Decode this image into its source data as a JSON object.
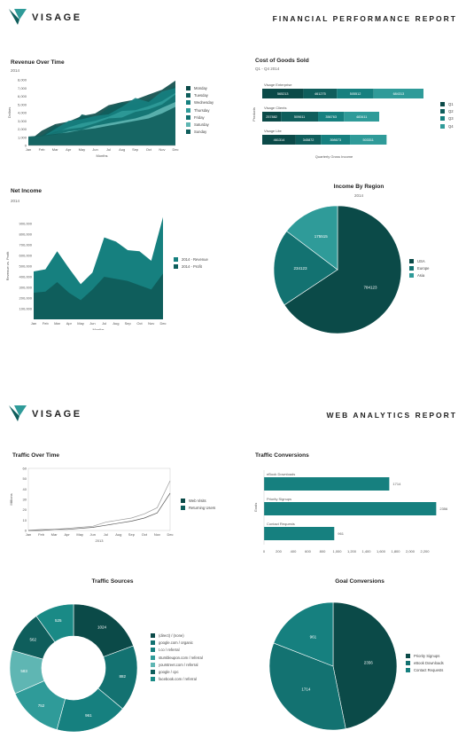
{
  "brand": {
    "name": "VISAGE"
  },
  "sections": [
    {
      "report_title": "FINANCIAL PERFORMANCE REPORT"
    },
    {
      "report_title": "WEB ANALYTICS REPORT"
    }
  ],
  "colors": {
    "teal_darkest": "#0b4a48",
    "teal_dark": "#0f5e5c",
    "teal_mid": "#137271",
    "teal": "#16807f",
    "teal_light": "#2f9b99",
    "teal_lighter": "#5fb6b3",
    "gray_line": "#9a9a9a"
  },
  "chart_data": [
    {
      "id": "revenue-over-time",
      "type": "area",
      "title": "Revenue Over Time",
      "subtitle": "2014",
      "xlabel": "Months",
      "ylabel": "Dollars",
      "categories": [
        "Jan",
        "Feb",
        "Mar",
        "Apr",
        "May",
        "Jun",
        "Jul",
        "Aug",
        "Sep",
        "Oct",
        "Nov",
        "Dec"
      ],
      "yticks": [
        "0",
        "1,000",
        "2,000",
        "3,000",
        "4,000",
        "5,000",
        "6,000",
        "7,000",
        "8,000"
      ],
      "ylim": [
        0,
        8000
      ],
      "series": [
        {
          "name": "Monday",
          "values": [
            500,
            1800,
            2600,
            2900,
            3600,
            3900,
            4900,
            5300,
            5600,
            6200,
            6800,
            7900
          ]
        },
        {
          "name": "Tuesday",
          "values": [
            600,
            1200,
            2400,
            2000,
            3800,
            3400,
            4600,
            5200,
            5000,
            5600,
            6200,
            7300
          ]
        },
        {
          "name": "Wednesday",
          "values": [
            700,
            1000,
            2000,
            3000,
            3200,
            3600,
            3800,
            4700,
            5800,
            5300,
            6600,
            7000
          ]
        },
        {
          "name": "Thursday",
          "values": [
            800,
            1100,
            1500,
            2200,
            2700,
            3000,
            3500,
            4200,
            4300,
            4800,
            5400,
            6400
          ]
        },
        {
          "name": "Friday",
          "values": [
            900,
            1000,
            1700,
            2000,
            2200,
            2700,
            3300,
            3400,
            4100,
            4400,
            5000,
            6200
          ]
        },
        {
          "name": "Saturday",
          "values": [
            1000,
            1100,
            1300,
            1700,
            1900,
            2400,
            2700,
            3000,
            3300,
            3800,
            4600,
            5300
          ]
        },
        {
          "name": "Sunday",
          "values": [
            1100,
            1200,
            1400,
            1600,
            1900,
            2100,
            2400,
            2700,
            3000,
            3300,
            3900,
            4700
          ]
        }
      ],
      "legend": "right"
    },
    {
      "id": "cost-of-goods-sold",
      "type": "bar",
      "orientation": "horizontal-stacked",
      "title": "Cost of Goods Sold",
      "subtitle": "Q1 - Q4 2014",
      "xlabel": "Quarterly Gross Income",
      "ylabel": "Products",
      "categories": [
        "Visage Enterprise",
        "Visage Clients",
        "Visage Lite"
      ],
      "series": [
        {
          "name": "Q1",
          "values": [
            565213,
            257882,
            461314
          ]
        },
        {
          "name": "Q2",
          "values": [
            461275,
            509611,
            345872
          ]
        },
        {
          "name": "Q3",
          "values": [
            505512,
            356763,
            398673
          ]
        },
        {
          "name": "Q4",
          "values": [
            684313,
            483411,
            503311
          ]
        }
      ],
      "legend": "right"
    },
    {
      "id": "net-income",
      "type": "area",
      "title": "Net Income",
      "subtitle": "2014",
      "xlabel": "Months",
      "ylabel": "Revenue vs. Profit",
      "categories": [
        "Jan",
        "Feb",
        "Mar",
        "Apr",
        "May",
        "Jun",
        "Jul",
        "Aug",
        "Sep",
        "Oct",
        "Nov",
        "Dec"
      ],
      "yticks": [
        "100,000",
        "200,000",
        "300,000",
        "400,000",
        "500,000",
        "600,000",
        "700,000",
        "800,000",
        "900,000"
      ],
      "ylim": [
        0,
        1000000
      ],
      "series": [
        {
          "name": "2014 - Revenue",
          "values": [
            450000,
            470000,
            640000,
            480000,
            330000,
            440000,
            770000,
            730000,
            650000,
            640000,
            550000,
            960000
          ]
        },
        {
          "name": "2014 - Profit",
          "values": [
            250000,
            260000,
            350000,
            250000,
            180000,
            280000,
            400000,
            380000,
            360000,
            320000,
            280000,
            430000
          ]
        }
      ],
      "legend": "right"
    },
    {
      "id": "income-by-region",
      "type": "pie",
      "title": "Income By Region",
      "subtitle": "2014",
      "labels": [
        "USA",
        "Europe",
        "Asia"
      ],
      "values": [
        784123,
        234123,
        175515
      ],
      "legend": "right"
    },
    {
      "id": "traffic-over-time",
      "type": "line",
      "title": "Traffic Over Time",
      "xlabel": "2013",
      "ylabel": "Millions",
      "categories": [
        "Jan",
        "Feb",
        "Mar",
        "Apr",
        "May",
        "Jun",
        "Jul",
        "Aug",
        "Sep",
        "Oct",
        "Nov",
        "Dec"
      ],
      "yticks": [
        "0",
        "10",
        "20",
        "30",
        "40",
        "50",
        "60"
      ],
      "ylim": [
        0,
        60
      ],
      "series": [
        {
          "name": "Web Visits",
          "values": [
            0,
            1,
            1,
            2,
            3,
            4,
            8,
            10,
            12,
            16,
            22,
            48
          ]
        },
        {
          "name": "Returning Users",
          "values": [
            0,
            0,
            1,
            1,
            2,
            3,
            5,
            7,
            9,
            12,
            17,
            36
          ]
        }
      ],
      "legend": "right"
    },
    {
      "id": "traffic-conversions",
      "type": "bar",
      "orientation": "horizontal",
      "title": "Traffic Conversions",
      "ylabel": "Goals",
      "categories": [
        "eBook Downloads",
        "Priority Signups",
        "Contact Requests"
      ],
      "values": [
        1714,
        2356,
        961
      ],
      "xticks": [
        "0",
        "200",
        "400",
        "600",
        "800",
        "1,000",
        "1,200",
        "1,400",
        "1,600",
        "1,800",
        "2,000",
        "2,200"
      ],
      "xlim": [
        0,
        2400
      ]
    },
    {
      "id": "traffic-sources",
      "type": "pie",
      "variant": "donut",
      "title": "Traffic Sources",
      "labels": [
        "(direct) / (none)",
        "google.com / organic",
        "t.co / referral",
        "stumbleupon.com / referral",
        "yourstreet.com / referral",
        "google / cpc",
        "facebook.com / referral"
      ],
      "values": [
        1024,
        882,
        961,
        752,
        583,
        562,
        525
      ],
      "legend": "right"
    },
    {
      "id": "goal-conversions",
      "type": "pie",
      "title": "Goal Conversions",
      "labels": [
        "Priority Signups",
        "eBook Downloads",
        "Contact Requests"
      ],
      "values": [
        2356,
        1714,
        961
      ],
      "legend": "right"
    }
  ]
}
